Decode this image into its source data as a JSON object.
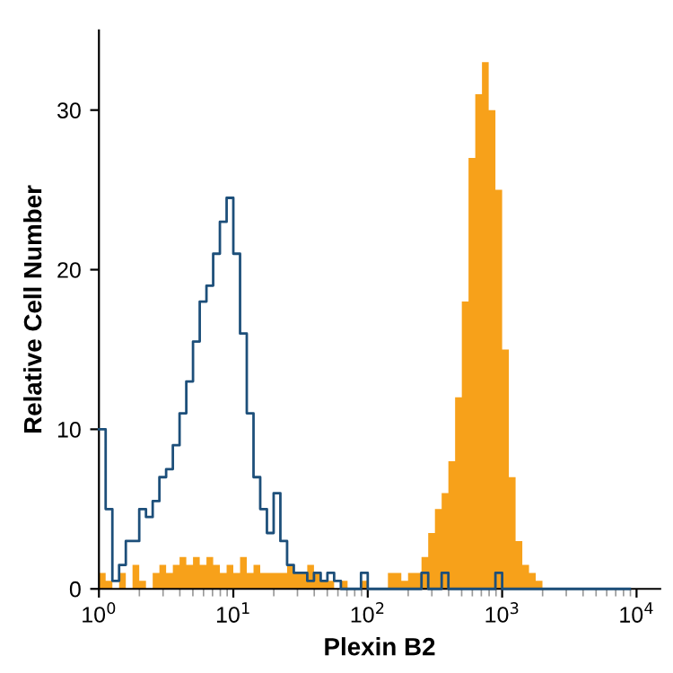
{
  "chart_data": {
    "type": "histogram",
    "xlabel": "Plexin B2",
    "ylabel": "Relative Cell Number",
    "log": "x",
    "bins": [
      1,
      1.122,
      1.259,
      1.413,
      1.585,
      1.778,
      1.995,
      2.239,
      2.512,
      2.818,
      3.162,
      3.548,
      3.981,
      4.467,
      5.012,
      5.623,
      6.31,
      7.079,
      7.943,
      8.913,
      10,
      11.22,
      12.59,
      14.13,
      15.85,
      17.78,
      19.95,
      22.39,
      25.12,
      28.18,
      31.62,
      35.48,
      39.81,
      44.67,
      50.12,
      56.23,
      63.1,
      70.79,
      79.43,
      89.13,
      100,
      112.2,
      125.9,
      141.3,
      158.5,
      177.8,
      199.5,
      223.9,
      251.2,
      281.8,
      316.2,
      354.8,
      398.1,
      446.7,
      501.2,
      562.3,
      631,
      707.9,
      794.3,
      891.3,
      1000,
      1122,
      1259,
      1413,
      1585,
      1778,
      1995,
      2239,
      2512,
      2818,
      3162,
      3548,
      3981,
      4467,
      5012,
      5623,
      6310,
      7079,
      7943,
      8913,
      10000
    ],
    "series": [
      {
        "color": "#f7a11a",
        "values": [
          1,
          0.5,
          0,
          1,
          0,
          1.5,
          0.5,
          0,
          1,
          1.5,
          1,
          1.5,
          2,
          1.5,
          2,
          1.5,
          2,
          1.5,
          1,
          1.5,
          1,
          2,
          1,
          1.5,
          1,
          1,
          1,
          1,
          1.5,
          1,
          1,
          1.5,
          1,
          0.5,
          0.5,
          0,
          0.5,
          0,
          0,
          0.5,
          0,
          0,
          0,
          1,
          1,
          0.5,
          1,
          1,
          2,
          3.5,
          5,
          6,
          8,
          12,
          18,
          27,
          31,
          33,
          30,
          25,
          15,
          7,
          3,
          1.5,
          1,
          0.5,
          0,
          0,
          0,
          0,
          0,
          0,
          0,
          0,
          0,
          0,
          0,
          0,
          0,
          0
        ]
      },
      {
        "type": "step",
        "color": "#1d4f7a",
        "x": [
          1,
          1.122,
          1.259,
          1.413,
          1.585,
          1.778,
          1.995,
          2.239,
          2.512,
          2.818,
          3.162,
          3.548,
          3.981,
          4.467,
          5.012,
          5.623,
          6.31,
          7.079,
          7.943,
          8.913,
          10,
          11.22,
          12.59,
          14.13,
          15.85,
          17.78,
          19.95,
          22.39,
          25.12,
          28.18,
          31.62,
          35.48,
          39.81,
          44.67,
          50.12,
          56.23,
          63.1,
          70.79,
          79.43,
          89.13,
          100,
          112.2,
          125.9,
          141.3,
          158.5,
          177.8,
          199.5,
          223.9,
          251.2,
          281.8,
          316.2,
          354.8,
          398.1,
          446.7,
          501.2,
          562.3,
          631,
          707.9,
          794.3,
          891.3,
          1000,
          1122,
          1259,
          1413,
          1585,
          1778,
          1995,
          2239,
          2512,
          2818,
          3162,
          3548,
          3981,
          4467,
          5012,
          5623,
          6310,
          7079,
          7943,
          8913
        ],
        "values": [
          10,
          5,
          0.5,
          1.5,
          3,
          3,
          5,
          4.5,
          5.5,
          7,
          7.5,
          9,
          11,
          13,
          15.5,
          18,
          19,
          21,
          23,
          24.5,
          21,
          16,
          11,
          7,
          5,
          3.5,
          6,
          3,
          1.5,
          1,
          1,
          0.5,
          1,
          0.5,
          1,
          0.5,
          0,
          0,
          0,
          1,
          0,
          0,
          0,
          0,
          0,
          0,
          0,
          0,
          1,
          0,
          0,
          1,
          0,
          0,
          0,
          0,
          0,
          0,
          0,
          1,
          0,
          0,
          0,
          0,
          0,
          0,
          0,
          0,
          0,
          0,
          0,
          0,
          0,
          0,
          0,
          0,
          0,
          0,
          0,
          0
        ]
      }
    ],
    "xlim": [
      1,
      15000
    ],
    "xticks": [
      {
        "value": 1,
        "label": "10$^{0}$"
      },
      {
        "value": 10,
        "label": "10$^{1}$"
      },
      {
        "value": 100,
        "label": "10$^{2}$"
      },
      {
        "value": 1000,
        "label": "10$^{3}$"
      },
      {
        "value": 10000,
        "label": "10$^{4}$"
      }
    ],
    "ylim": [
      0,
      35
    ],
    "yticks": [
      0,
      10,
      20,
      30
    ]
  }
}
